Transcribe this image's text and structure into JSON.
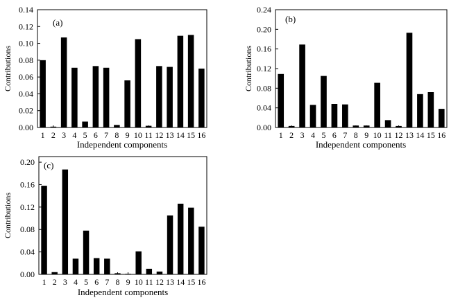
{
  "chart_data": [
    {
      "type": "bar",
      "panel_label": "(a)",
      "categories": [
        "1",
        "2",
        "3",
        "4",
        "5",
        "6",
        "7",
        "8",
        "9",
        "10",
        "11",
        "12",
        "13",
        "14",
        "15",
        "16"
      ],
      "values": [
        0.08,
        0.001,
        0.107,
        0.071,
        0.007,
        0.073,
        0.071,
        0.003,
        0.056,
        0.105,
        0.002,
        0.073,
        0.072,
        0.109,
        0.11,
        0.07
      ],
      "xlabel": "Independent components",
      "ylabel": "Contributions",
      "ylim": [
        0,
        0.14
      ],
      "yticks": [
        "0.00",
        "0.02",
        "0.04",
        "0.06",
        "0.08",
        "0.10",
        "0.12",
        "0.14"
      ],
      "grid": false
    },
    {
      "type": "bar",
      "panel_label": "(b)",
      "categories": [
        "1",
        "2",
        "3",
        "4",
        "5",
        "6",
        "7",
        "8",
        "9",
        "10",
        "11",
        "12",
        "13",
        "14",
        "15",
        "16"
      ],
      "values": [
        0.109,
        0.003,
        0.169,
        0.046,
        0.105,
        0.048,
        0.047,
        0.004,
        0.004,
        0.091,
        0.015,
        0.003,
        0.193,
        0.068,
        0.072,
        0.038
      ],
      "xlabel": "Independent components",
      "ylabel": "Contributions",
      "ylim": [
        0,
        0.24
      ],
      "yticks": [
        "0.00",
        "0.04",
        "0.08",
        "0.12",
        "0.16",
        "0.20",
        "0.24"
      ],
      "grid": false
    },
    {
      "type": "bar",
      "panel_label": "(c)",
      "categories": [
        "1",
        "2",
        "3",
        "4",
        "5",
        "6",
        "7",
        "8",
        "9",
        "10",
        "11",
        "12",
        "13",
        "14",
        "15",
        "16"
      ],
      "values": [
        0.158,
        0.004,
        0.187,
        0.028,
        0.078,
        0.029,
        0.028,
        0.002,
        0.001,
        0.041,
        0.01,
        0.005,
        0.105,
        0.126,
        0.119,
        0.085
      ],
      "xlabel": "Independent components",
      "ylabel": "Contributions",
      "ylim": [
        0,
        0.21
      ],
      "yticks": [
        "0.00",
        "0.04",
        "0.08",
        "0.12",
        "0.16",
        "0.20"
      ],
      "grid": false
    }
  ]
}
